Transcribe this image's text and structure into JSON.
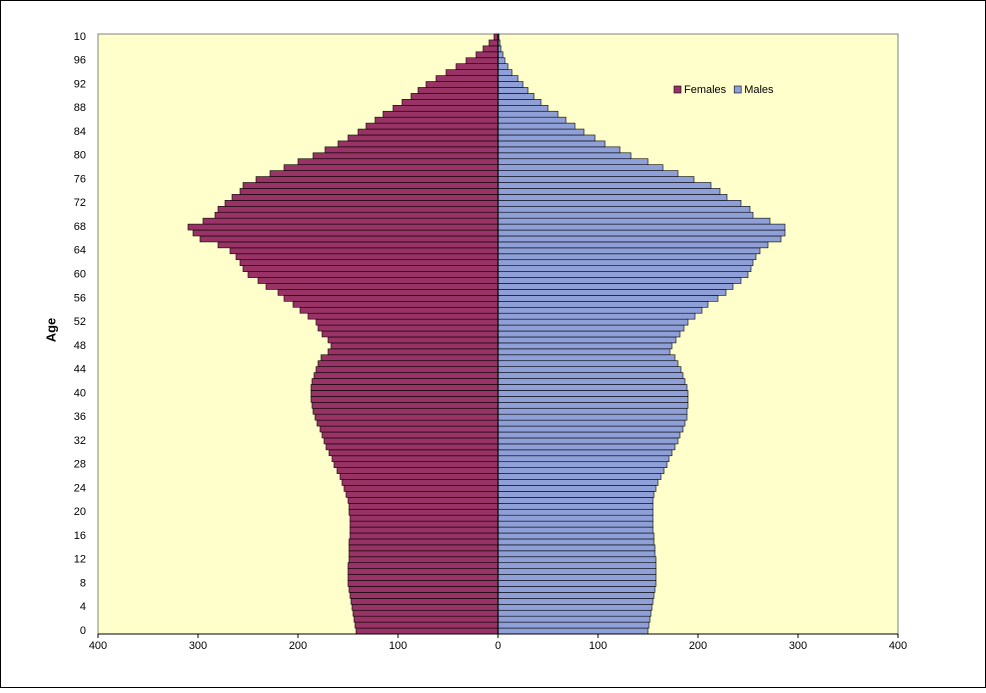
{
  "chart_data": {
    "type": "pyramid",
    "y_label": "Age",
    "categories": [
      "0",
      null,
      null,
      null,
      "4",
      null,
      null,
      null,
      "8",
      null,
      null,
      null,
      "12",
      null,
      null,
      null,
      "16",
      null,
      null,
      null,
      "20",
      null,
      null,
      null,
      "24",
      null,
      null,
      null,
      "28",
      null,
      null,
      null,
      "32",
      null,
      null,
      null,
      "36",
      null,
      null,
      null,
      "40",
      null,
      null,
      null,
      "44",
      null,
      null,
      null,
      "48",
      null,
      null,
      null,
      "52",
      null,
      null,
      null,
      "56",
      null,
      null,
      null,
      "60",
      null,
      null,
      null,
      "64",
      null,
      null,
      null,
      "68",
      null,
      null,
      null,
      "72",
      null,
      null,
      null,
      "76",
      null,
      null,
      null,
      "80",
      null,
      null,
      null,
      "84",
      null,
      null,
      null,
      "88",
      null,
      null,
      null,
      "92",
      null,
      null,
      null,
      "96",
      null,
      null,
      null,
      "10"
    ],
    "series": [
      {
        "name": "Females",
        "color": "#993366",
        "values": [
          -142,
          -143,
          -144,
          -145,
          -146,
          -147,
          -148,
          -149,
          -150,
          -150,
          -150,
          -150,
          -149,
          -149,
          -149,
          -149,
          -148,
          -148,
          -148,
          -148,
          -149,
          -149,
          -150,
          -152,
          -154,
          -156,
          -158,
          -161,
          -164,
          -166,
          -169,
          -172,
          -174,
          -176,
          -178,
          -181,
          -183,
          -185,
          -186,
          -187,
          -187,
          -187,
          -186,
          -184,
          -182,
          -180,
          -177,
          -170,
          -167,
          -170,
          -176,
          -180,
          -182,
          -190,
          -198,
          -205,
          -214,
          -220,
          -232,
          -240,
          -250,
          -255,
          -258,
          -262,
          -268,
          -280,
          -298,
          -305,
          -310,
          -295,
          -283,
          -280,
          -273,
          -266,
          -258,
          -255,
          -242,
          -228,
          -214,
          -200,
          -185,
          -173,
          -160,
          -150,
          -140,
          -132,
          -123,
          -115,
          -105,
          -96,
          -87,
          -80,
          -72,
          -62,
          -52,
          -42,
          -32,
          -22,
          -15,
          -9,
          -4
        ]
      },
      {
        "name": "Males",
        "color": "#8fa0d8",
        "values": [
          150,
          151,
          152,
          153,
          154,
          155,
          156,
          157,
          158,
          158,
          158,
          158,
          158,
          157,
          157,
          156,
          156,
          155,
          155,
          155,
          155,
          155,
          155,
          156,
          158,
          160,
          163,
          166,
          169,
          171,
          174,
          177,
          180,
          182,
          185,
          187,
          189,
          189,
          190,
          190,
          190,
          189,
          187,
          185,
          183,
          180,
          177,
          172,
          174,
          178,
          182,
          186,
          190,
          197,
          204,
          210,
          220,
          228,
          235,
          243,
          250,
          253,
          255,
          258,
          262,
          270,
          283,
          287,
          287,
          272,
          255,
          252,
          243,
          229,
          222,
          213,
          196,
          180,
          165,
          150,
          133,
          122,
          107,
          97,
          86,
          77,
          68,
          60,
          50,
          43,
          36,
          30,
          25,
          20,
          14,
          10,
          7,
          5,
          3,
          2,
          1
        ]
      }
    ],
    "xlim": [
      -400,
      400
    ],
    "xticks": [
      {
        "value": -400,
        "label": "400"
      },
      {
        "value": -300,
        "label": "300"
      },
      {
        "value": -200,
        "label": "200"
      },
      {
        "value": -100,
        "label": "100"
      },
      0,
      100,
      200,
      300,
      400
    ],
    "plot_background": "#ffffcc"
  }
}
